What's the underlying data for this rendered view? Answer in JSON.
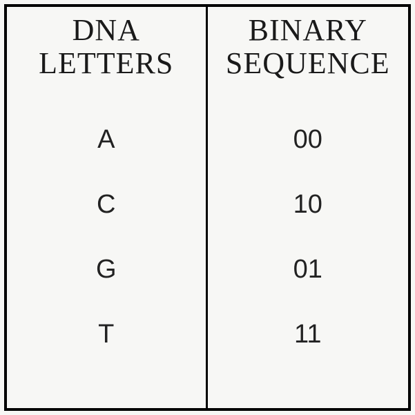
{
  "table": {
    "type": "table",
    "background_color": "#f7f7f5",
    "border_color": "#000000",
    "border_width": 4,
    "divider_width": 3,
    "header_font_family": "Times New Roman",
    "header_fontsize": 44,
    "body_font_family": "Segoe UI",
    "body_fontsize": 38,
    "text_color": "#1a1a1a",
    "columns": [
      {
        "id": "letters",
        "title_line1": "DNA",
        "title_line2": "LETTERS"
      },
      {
        "id": "binary",
        "title_line1": "BINARY",
        "title_line2": "SEQUENCE"
      }
    ],
    "rows": [
      {
        "letter": "A",
        "binary": "00"
      },
      {
        "letter": "C",
        "binary": "10"
      },
      {
        "letter": "G",
        "binary": "01"
      },
      {
        "letter": "T",
        "binary": "11"
      }
    ]
  }
}
